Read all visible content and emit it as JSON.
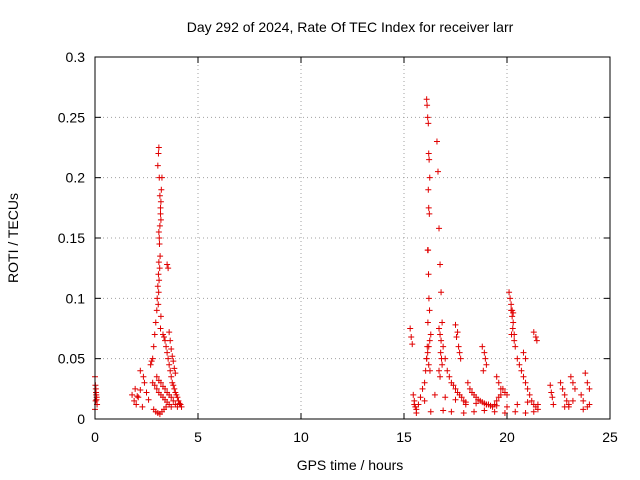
{
  "chart_data": {
    "type": "scatter",
    "title": "Day 292 of 2024, Rate Of TEC Index for receiver larr",
    "xlabel": "GPS time / hours",
    "ylabel": "ROTI / TECUs",
    "xlim": [
      0,
      25
    ],
    "ylim": [
      0,
      0.3
    ],
    "xticks": [
      0,
      5,
      10,
      15,
      20,
      25
    ],
    "xtick_labels": [
      "0",
      "5",
      "10",
      "15",
      "20",
      "25"
    ],
    "yticks": [
      0,
      0.05,
      0.1,
      0.15,
      0.2,
      0.25,
      0.3
    ],
    "ytick_labels": [
      "0",
      "0.05",
      "0.1",
      "0.15",
      "0.2",
      "0.25",
      "0.3"
    ],
    "grid": true,
    "marker": "+",
    "color": "#e00000",
    "series": [
      {
        "x": [
          0.0,
          0.02,
          0.05,
          0.08,
          0.1,
          0.03,
          0.06,
          0.0,
          0.04,
          0.07,
          1.8,
          1.9,
          2.0,
          2.1,
          2.2,
          2.3,
          2.4,
          2.5,
          2.6,
          2.2,
          2.35,
          1.95,
          2.05,
          2.7,
          2.75,
          2.8,
          2.85,
          2.9,
          2.95,
          3.0,
          3.02,
          3.05,
          3.08,
          3.1,
          3.12,
          3.15,
          3.18,
          3.2,
          3.22,
          3.25,
          3.05,
          3.08,
          3.1,
          3.12,
          3.15,
          3.18,
          3.2,
          3.1,
          3.13,
          3.16,
          3.14,
          3.11,
          3.09,
          3.07,
          3.2,
          3.18,
          3.3,
          3.35,
          3.4,
          3.45,
          3.5,
          3.55,
          3.6,
          3.65,
          3.7,
          3.75,
          3.8,
          3.85,
          3.9,
          3.95,
          4.0,
          4.05,
          4.1,
          4.15,
          4.2,
          3.5,
          3.55,
          3.6,
          3.65,
          3.7,
          3.75,
          3.8,
          3.85,
          3.9,
          2.8,
          2.9,
          3.0,
          3.1,
          3.2,
          3.3,
          3.4,
          3.5,
          3.6,
          3.7,
          3.0,
          3.1,
          3.2,
          3.3,
          3.4,
          3.5,
          3.6,
          3.7,
          3.8,
          3.9,
          4.0,
          2.85,
          2.95,
          3.05,
          3.15,
          3.25,
          3.35,
          3.45,
          15.3,
          15.35,
          15.4,
          15.45,
          15.5,
          15.55,
          15.6,
          15.7,
          15.8,
          15.9,
          16.0,
          16.05,
          16.1,
          16.15,
          16.2,
          16.25,
          16.3,
          16.1,
          16.12,
          16.15,
          16.18,
          16.2,
          16.22,
          16.25,
          16.18,
          16.2,
          16.23,
          16.15,
          16.17,
          16.19,
          16.21,
          16.24,
          16.16,
          16.13,
          16.1,
          16.2,
          16.26,
          16.6,
          16.65,
          16.7,
          16.75,
          16.8,
          16.85,
          16.9,
          17.0,
          17.1,
          17.2,
          17.3,
          17.4,
          17.5,
          17.6,
          17.7,
          17.8,
          17.9,
          18.0,
          16.7,
          16.75,
          16.8,
          16.78,
          16.82,
          16.85,
          16.7,
          16.75,
          17.5,
          17.6,
          17.55,
          17.65,
          17.7,
          17.75,
          18.1,
          18.2,
          18.3,
          18.4,
          18.5,
          18.6,
          18.7,
          18.8,
          18.9,
          19.0,
          19.1,
          19.2,
          19.3,
          19.4,
          19.5,
          19.6,
          19.7,
          19.8,
          19.9,
          20.0,
          18.8,
          18.9,
          18.95,
          19.0,
          18.85,
          19.5,
          19.6,
          19.7,
          20.1,
          20.15,
          20.2,
          20.25,
          20.3,
          20.35,
          20.4,
          20.5,
          20.6,
          20.7,
          20.8,
          20.9,
          21.0,
          21.1,
          21.2,
          21.3,
          21.4,
          21.5,
          20.2,
          20.25,
          20.3,
          20.28,
          20.22,
          20.35,
          20.8,
          20.9,
          21.3,
          21.4,
          21.45,
          22.1,
          22.15,
          22.2,
          22.25,
          22.6,
          22.7,
          22.8,
          22.9,
          23.0,
          23.1,
          23.2,
          23.3,
          23.6,
          23.7,
          23.8,
          23.9,
          24.0,
          22.8,
          23.0,
          23.2,
          23.7,
          23.9,
          24.0,
          15.5,
          16.0,
          16.5,
          17.0,
          17.5,
          18.0,
          18.5,
          19.0,
          19.5,
          20.0,
          20.5,
          21.0,
          21.5,
          15.6,
          16.3,
          16.9,
          17.3,
          17.9,
          18.4,
          18.9,
          19.4,
          19.9,
          20.4,
          20.9,
          21.3
        ],
        "y": [
          0.035,
          0.028,
          0.022,
          0.018,
          0.012,
          0.015,
          0.02,
          0.008,
          0.025,
          0.016,
          0.02,
          0.015,
          0.012,
          0.018,
          0.024,
          0.01,
          0.03,
          0.022,
          0.016,
          0.04,
          0.035,
          0.025,
          0.019,
          0.045,
          0.048,
          0.05,
          0.06,
          0.07,
          0.08,
          0.09,
          0.1,
          0.11,
          0.12,
          0.13,
          0.15,
          0.16,
          0.17,
          0.18,
          0.19,
          0.2,
          0.21,
          0.22,
          0.225,
          0.2,
          0.185,
          0.175,
          0.165,
          0.155,
          0.145,
          0.135,
          0.125,
          0.115,
          0.105,
          0.095,
          0.085,
          0.075,
          0.07,
          0.068,
          0.065,
          0.06,
          0.055,
          0.05,
          0.045,
          0.04,
          0.035,
          0.03,
          0.028,
          0.025,
          0.022,
          0.02,
          0.018,
          0.015,
          0.013,
          0.012,
          0.01,
          0.128,
          0.125,
          0.072,
          0.065,
          0.058,
          0.052,
          0.048,
          0.042,
          0.038,
          0.03,
          0.028,
          0.025,
          0.022,
          0.02,
          0.018,
          0.016,
          0.014,
          0.012,
          0.01,
          0.035,
          0.032,
          0.03,
          0.027,
          0.025,
          0.022,
          0.02,
          0.018,
          0.015,
          0.012,
          0.01,
          0.008,
          0.006,
          0.005,
          0.004,
          0.006,
          0.008,
          0.01,
          0.075,
          0.068,
          0.062,
          0.02,
          0.015,
          0.01,
          0.008,
          0.012,
          0.018,
          0.025,
          0.03,
          0.04,
          0.05,
          0.055,
          0.06,
          0.065,
          0.07,
          0.265,
          0.26,
          0.25,
          0.245,
          0.22,
          0.215,
          0.2,
          0.19,
          0.175,
          0.17,
          0.14,
          0.14,
          0.12,
          0.1,
          0.09,
          0.08,
          0.06,
          0.05,
          0.045,
          0.04,
          0.23,
          0.205,
          0.158,
          0.128,
          0.105,
          0.08,
          0.06,
          0.05,
          0.04,
          0.035,
          0.03,
          0.028,
          0.025,
          0.022,
          0.02,
          0.018,
          0.015,
          0.012,
          0.075,
          0.07,
          0.065,
          0.055,
          0.05,
          0.045,
          0.04,
          0.035,
          0.078,
          0.072,
          0.068,
          0.06,
          0.055,
          0.05,
          0.03,
          0.025,
          0.022,
          0.02,
          0.018,
          0.016,
          0.015,
          0.014,
          0.013,
          0.012,
          0.012,
          0.011,
          0.01,
          0.012,
          0.015,
          0.018,
          0.02,
          0.025,
          0.022,
          0.02,
          0.06,
          0.055,
          0.05,
          0.045,
          0.04,
          0.035,
          0.03,
          0.025,
          0.105,
          0.1,
          0.09,
          0.085,
          0.08,
          0.07,
          0.06,
          0.05,
          0.045,
          0.04,
          0.035,
          0.03,
          0.025,
          0.02,
          0.015,
          0.012,
          0.01,
          0.008,
          0.095,
          0.09,
          0.088,
          0.075,
          0.07,
          0.065,
          0.055,
          0.05,
          0.072,
          0.068,
          0.065,
          0.028,
          0.022,
          0.018,
          0.012,
          0.03,
          0.025,
          0.02,
          0.015,
          0.01,
          0.035,
          0.03,
          0.025,
          0.02,
          0.015,
          0.038,
          0.03,
          0.025,
          0.01,
          0.012,
          0.015,
          0.008,
          0.01,
          0.012,
          0.012,
          0.015,
          0.02,
          0.018,
          0.016,
          0.014,
          0.013,
          0.012,
          0.011,
          0.01,
          0.012,
          0.014,
          0.012,
          0.005,
          0.006,
          0.007,
          0.006,
          0.005,
          0.006,
          0.007,
          0.006,
          0.005,
          0.006,
          0.005,
          0.006
        ]
      }
    ]
  }
}
